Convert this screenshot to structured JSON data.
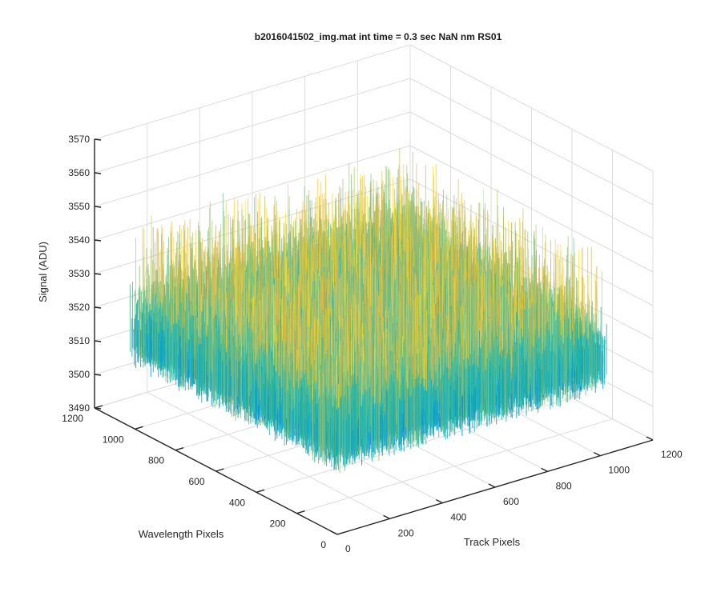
{
  "chart_data": {
    "type": "surface",
    "title": "b2016041502_img.mat int time = 0.3 sec  NaN nm RS01",
    "xlabel": "Track Pixels",
    "ylabel": "Wavelength Pixels",
    "zlabel": "Signal (ADU)",
    "xlim": [
      0,
      1200
    ],
    "ylim": [
      0,
      1200
    ],
    "zlim": [
      3490,
      3570
    ],
    "x_ticks": [
      "0",
      "200",
      "400",
      "600",
      "800",
      "1000",
      "1200"
    ],
    "y_ticks": [
      "0",
      "200",
      "400",
      "600",
      "800",
      "1000",
      "1200"
    ],
    "z_ticks": [
      "3490",
      "3500",
      "3510",
      "3520",
      "3530",
      "3540",
      "3550",
      "3560",
      "3570"
    ],
    "data_extent": {
      "x": [
        0,
        1024
      ],
      "y": [
        0,
        1024
      ]
    },
    "signal_mean": 3524,
    "signal_typical_range": [
      3505,
      3545
    ],
    "colormap": "parula",
    "grid": true
  }
}
